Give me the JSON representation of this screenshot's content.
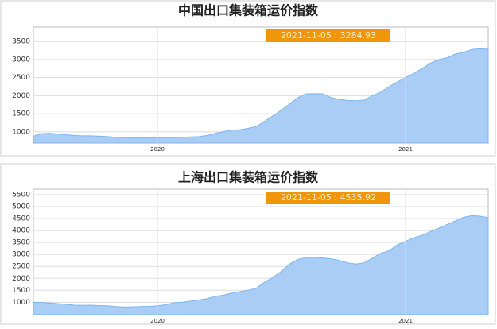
{
  "chart_data": [
    {
      "type": "area",
      "title": "中国出口集装箱运价指数",
      "annotation": "2021-11-05 : 3284.93",
      "categories": [
        null,
        null,
        null,
        null,
        null,
        null,
        null,
        null,
        null,
        null,
        null,
        null,
        null,
        null,
        null,
        "2020",
        null,
        null,
        null,
        null,
        null,
        null,
        null,
        null,
        null,
        null,
        null,
        null,
        null,
        null,
        null,
        null,
        null,
        null,
        null,
        null,
        null,
        null,
        null,
        null,
        null,
        null,
        null,
        null,
        null,
        "2021",
        null,
        null,
        null,
        null,
        null,
        null,
        null,
        null,
        null,
        null
      ],
      "values": [
        880,
        950,
        960,
        940,
        920,
        900,
        890,
        890,
        880,
        870,
        850,
        840,
        830,
        830,
        830,
        830,
        840,
        840,
        850,
        860,
        870,
        900,
        960,
        1010,
        1050,
        1060,
        1100,
        1150,
        1300,
        1450,
        1600,
        1780,
        1950,
        2050,
        2060,
        2050,
        1950,
        1900,
        1870,
        1860,
        1880,
        2000,
        2100,
        2250,
        2380,
        2500,
        2620,
        2750,
        2900,
        3000,
        3050,
        3150,
        3200,
        3280,
        3300,
        3284.93
      ],
      "color": "#7eb4ee",
      "fill": "#a9cdf5",
      "ylim": [
        690,
        3900
      ],
      "yticks": [
        1000,
        1500,
        2000,
        2500,
        3000,
        3500
      ],
      "grid": true
    },
    {
      "type": "area",
      "title": "上海出口集装箱运价指数",
      "annotation": "2021-11-05 : 4535.92",
      "categories": [
        null,
        null,
        null,
        null,
        null,
        null,
        null,
        null,
        null,
        null,
        null,
        null,
        null,
        null,
        null,
        "2020",
        null,
        null,
        null,
        null,
        null,
        null,
        null,
        null,
        null,
        null,
        null,
        null,
        null,
        null,
        null,
        null,
        null,
        null,
        null,
        null,
        null,
        null,
        null,
        null,
        null,
        null,
        null,
        null,
        null,
        "2021",
        null,
        null,
        null,
        null,
        null,
        null,
        null,
        null,
        null,
        null
      ],
      "values": [
        1000,
        990,
        970,
        940,
        910,
        880,
        870,
        880,
        860,
        850,
        820,
        800,
        810,
        820,
        830,
        850,
        900,
        980,
        1000,
        1050,
        1100,
        1150,
        1250,
        1300,
        1380,
        1450,
        1500,
        1600,
        1850,
        2050,
        2300,
        2600,
        2800,
        2870,
        2880,
        2850,
        2820,
        2750,
        2650,
        2600,
        2650,
        2850,
        3050,
        3150,
        3400,
        3550,
        3700,
        3800,
        3950,
        4100,
        4250,
        4400,
        4550,
        4620,
        4600,
        4535.92
      ],
      "color": "#7eb4ee",
      "fill": "#a9cdf5",
      "ylim": [
        480,
        5730
      ],
      "yticks": [
        1000,
        1500,
        2000,
        2500,
        3000,
        3500,
        4000,
        4500,
        5000,
        5500
      ],
      "grid": true
    }
  ]
}
